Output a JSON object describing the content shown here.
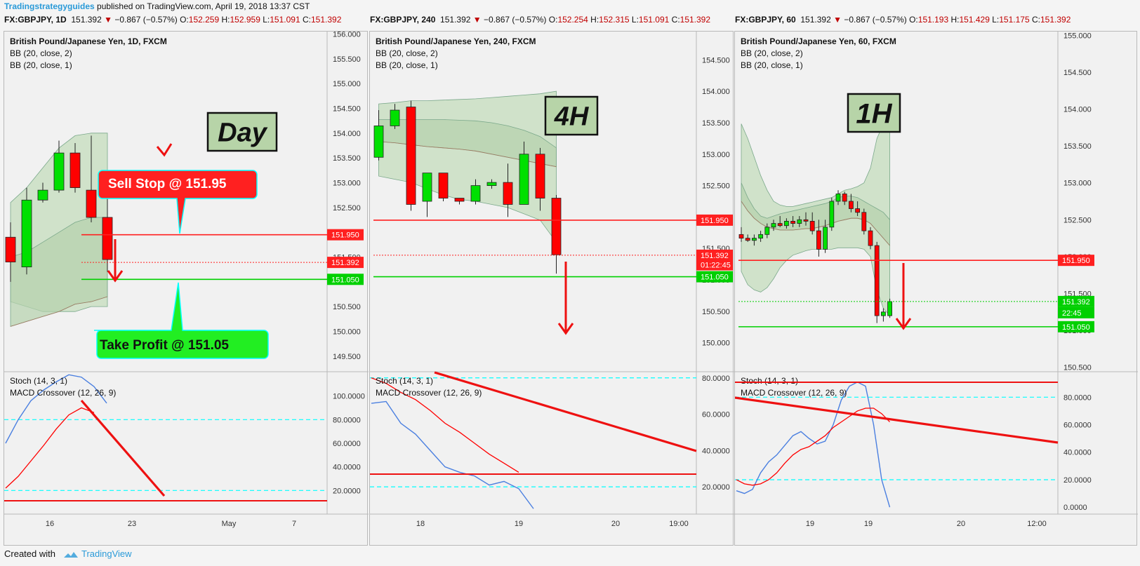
{
  "header": {
    "author": "Tradingstrategyguides",
    "published": "published on TradingView.com, April 19, 2018 13:37 CST"
  },
  "footer": {
    "created_with": "Created with",
    "brand": "TradingView"
  },
  "colors": {
    "bull": "#00e000",
    "bear": "#ff0000",
    "bb_fill": "#c8dfc0",
    "macd": "#ff0000",
    "stoch": "#4a7fe0",
    "level": "#00ffff"
  },
  "chart_data": [
    {
      "type": "candlestick",
      "symbol": "FX:GBPJPY, 1D",
      "quote": {
        "last": "151.392",
        "change": "−0.867 (−0.57%)",
        "o": "152.259",
        "h": "152.959",
        "l": "151.091",
        "c": "151.392"
      },
      "title": "British Pound/Japanese Yen, 1D, FXCM",
      "indicators": [
        "BB (20, close, 2)",
        "BB (20, close, 1)"
      ],
      "badge": "Day",
      "ylim": [
        149.2,
        156.05
      ],
      "yticks": [
        "149.500",
        "150.000",
        "150.500",
        "151.000",
        "151.500",
        "152.000",
        "152.500",
        "153.000",
        "153.500",
        "154.000",
        "154.500",
        "155.000",
        "155.500",
        "156.000"
      ],
      "xticks": [
        "16",
        "23",
        "May",
        "7"
      ],
      "candles": [
        {
          "o": 151.9,
          "h": 152.2,
          "l": 151.0,
          "c": 151.4
        },
        {
          "o": 151.3,
          "h": 152.9,
          "l": 151.15,
          "c": 152.65
        },
        {
          "o": 152.65,
          "h": 153.0,
          "l": 152.6,
          "c": 152.85
        },
        {
          "o": 152.85,
          "h": 153.85,
          "l": 152.8,
          "c": 153.6
        },
        {
          "o": 153.6,
          "h": 153.8,
          "l": 152.8,
          "c": 152.9
        },
        {
          "o": 152.85,
          "h": 153.95,
          "l": 152.2,
          "c": 152.3
        },
        {
          "o": 152.3,
          "h": 153.2,
          "l": 151.2,
          "c": 151.45
        }
      ],
      "bb_outer": {
        "upper": [
          152.6,
          152.9,
          153.3,
          153.7,
          153.95,
          154.0,
          154.0
        ],
        "lower": [
          150.6,
          150.5,
          150.4,
          150.4,
          150.4,
          150.5,
          150.5
        ]
      },
      "bb_inner": {
        "upper": [
          151.5,
          151.6,
          151.8,
          152.0,
          152.2,
          152.3,
          152.3
        ],
        "mid": [
          150.1,
          150.2,
          150.3,
          150.4,
          150.55,
          150.6,
          150.7
        ]
      },
      "levels": [
        {
          "label": "151.950",
          "price": 151.95,
          "color": "#ff2020"
        },
        {
          "label": "151.392",
          "price": 151.392,
          "color": "#ff2020",
          "dotted": true
        },
        {
          "label": "151.050",
          "price": 151.05,
          "color": "#00d000"
        }
      ],
      "callouts": {
        "sell": "Sell Stop @ 151.95",
        "take": "Take Profit @ 151.05"
      },
      "lower": {
        "legend": [
          "Stoch (14, 3, 1)",
          "MACD Crossover (12, 26, 9)"
        ],
        "ylim": [
          0,
          120
        ],
        "yticks": [
          "20.0000",
          "40.0000",
          "60.0000",
          "80.0000",
          "100.0000"
        ],
        "levels": [
          20,
          80
        ],
        "stoch": [
          60,
          80,
          96,
          105,
          112,
          118,
          116,
          108,
          94
        ],
        "macd": [
          22,
          32,
          45,
          58,
          72,
          84,
          90,
          86
        ]
      }
    },
    {
      "type": "candlestick",
      "symbol": "FX:GBPJPY, 240",
      "quote": {
        "last": "151.392",
        "change": "−0.867 (−0.57%)",
        "o": "152.254",
        "h": "152.315",
        "l": "151.091",
        "c": "151.392"
      },
      "title": "British Pound/Japanese Yen, 240, FXCM",
      "indicators": [
        "BB (20, close, 2)",
        "BB (20, close, 1)"
      ],
      "badge": "4H",
      "ylim": [
        149.55,
        154.95
      ],
      "yticks": [
        "150.000",
        "150.500",
        "151.000",
        "151.500",
        "152.000",
        "152.500",
        "153.000",
        "153.500",
        "154.000",
        "154.500"
      ],
      "xticks": [
        "18",
        "19",
        "20",
        "19:00"
      ],
      "candles": [
        {
          "o": 152.95,
          "h": 153.7,
          "l": 152.9,
          "c": 153.45
        },
        {
          "o": 153.45,
          "h": 153.8,
          "l": 153.4,
          "c": 153.7
        },
        {
          "o": 153.75,
          "h": 153.85,
          "l": 152.1,
          "c": 152.2
        },
        {
          "o": 152.25,
          "h": 152.7,
          "l": 152.0,
          "c": 152.7
        },
        {
          "o": 152.7,
          "h": 152.7,
          "l": 152.25,
          "c": 152.3
        },
        {
          "o": 152.3,
          "h": 152.3,
          "l": 152.2,
          "c": 152.25
        },
        {
          "o": 152.25,
          "h": 152.6,
          "l": 152.2,
          "c": 152.5
        },
        {
          "o": 152.5,
          "h": 152.6,
          "l": 152.45,
          "c": 152.55
        },
        {
          "o": 152.55,
          "h": 152.85,
          "l": 152.0,
          "c": 152.2
        },
        {
          "o": 152.2,
          "h": 153.2,
          "l": 152.2,
          "c": 153.0
        },
        {
          "o": 153.0,
          "h": 153.1,
          "l": 152.1,
          "c": 152.3
        },
        {
          "o": 152.3,
          "h": 152.35,
          "l": 151.1,
          "c": 151.4
        }
      ],
      "bb_outer": {
        "upper": [
          153.8,
          153.82,
          153.85,
          153.85,
          153.86,
          153.87,
          153.88,
          153.9,
          153.92,
          153.94,
          153.96,
          154.0
        ],
        "lower": [
          152.65,
          152.6,
          152.55,
          152.45,
          152.35,
          152.28,
          152.25,
          152.2,
          152.15,
          152.05,
          151.95,
          151.6
        ]
      },
      "bb_inner": {
        "upper": [
          153.55,
          153.55,
          153.55,
          153.55,
          153.55,
          153.54,
          153.53,
          153.5,
          153.45,
          153.38,
          153.28,
          153.1
        ],
        "mid": [
          153.2,
          153.18,
          153.15,
          153.12,
          153.1,
          153.08,
          153.05,
          153.0,
          152.95,
          152.9,
          152.85,
          152.8
        ]
      },
      "levels": [
        {
          "label": "151.950",
          "price": 151.95,
          "color": "#ff2020"
        },
        {
          "label": "151.392",
          "price": 151.392,
          "color": "#ff2020",
          "dotted": true
        },
        {
          "label": "01:22:45",
          "price": 151.24,
          "color": "#ff2020",
          "nolines": true
        },
        {
          "label": "151.050",
          "price": 151.05,
          "color": "#00d000"
        }
      ],
      "lower": {
        "legend": [
          "Stoch (14, 3, 1)",
          "MACD Crossover (12, 26, 9)"
        ],
        "ylim": [
          5,
          83
        ],
        "yticks": [
          "20.0000",
          "40.0000",
          "60.0000",
          "80.0000"
        ],
        "levels": [
          20,
          80
        ],
        "stoch": [
          66,
          67,
          55,
          49,
          40,
          31,
          28,
          26,
          21,
          23,
          19,
          8
        ],
        "macd": [
          80,
          77,
          72,
          68,
          62,
          55,
          50,
          44,
          38,
          33,
          28
        ]
      }
    },
    {
      "type": "candlestick",
      "symbol": "FX:GBPJPY, 60",
      "quote": {
        "last": "151.392",
        "change": "−0.867 (−0.57%)",
        "o": "151.193",
        "h": "151.429",
        "l": "151.175",
        "c": "151.392"
      },
      "title": "British Pound/Japanese Yen, 60, FXCM",
      "indicators": [
        "BB (20, close, 2)",
        "BB (20, close, 1)"
      ],
      "badge": "1H",
      "ylim": [
        150.45,
        155.05
      ],
      "yticks": [
        "150.500",
        "151.000",
        "151.500",
        "152.000",
        "152.500",
        "153.000",
        "153.500",
        "154.000",
        "154.500",
        "155.000"
      ],
      "xticks": [
        "19",
        "19",
        "20",
        "12:00"
      ],
      "candles": [
        {
          "o": 152.3,
          "h": 152.4,
          "l": 152.2,
          "c": 152.25
        },
        {
          "o": 152.25,
          "h": 152.3,
          "l": 152.2,
          "c": 152.22
        },
        {
          "o": 152.22,
          "h": 152.3,
          "l": 152.15,
          "c": 152.25
        },
        {
          "o": 152.25,
          "h": 152.35,
          "l": 152.2,
          "c": 152.3
        },
        {
          "o": 152.3,
          "h": 152.45,
          "l": 152.25,
          "c": 152.4
        },
        {
          "o": 152.4,
          "h": 152.5,
          "l": 152.35,
          "c": 152.45
        },
        {
          "o": 152.45,
          "h": 152.55,
          "l": 152.4,
          "c": 152.42
        },
        {
          "o": 152.42,
          "h": 152.52,
          "l": 152.38,
          "c": 152.48
        },
        {
          "o": 152.48,
          "h": 152.55,
          "l": 152.4,
          "c": 152.45
        },
        {
          "o": 152.45,
          "h": 152.55,
          "l": 152.4,
          "c": 152.5
        },
        {
          "o": 152.5,
          "h": 152.6,
          "l": 152.42,
          "c": 152.48
        },
        {
          "o": 152.48,
          "h": 152.6,
          "l": 152.3,
          "c": 152.35
        },
        {
          "o": 152.35,
          "h": 152.5,
          "l": 152.0,
          "c": 152.1
        },
        {
          "o": 152.1,
          "h": 152.5,
          "l": 152.05,
          "c": 152.4
        },
        {
          "o": 152.4,
          "h": 152.8,
          "l": 152.35,
          "c": 152.75
        },
        {
          "o": 152.75,
          "h": 152.9,
          "l": 152.7,
          "c": 152.85
        },
        {
          "o": 152.85,
          "h": 152.88,
          "l": 152.7,
          "c": 152.75
        },
        {
          "o": 152.75,
          "h": 152.85,
          "l": 152.6,
          "c": 152.65
        },
        {
          "o": 152.65,
          "h": 152.75,
          "l": 152.55,
          "c": 152.6
        },
        {
          "o": 152.6,
          "h": 152.65,
          "l": 152.3,
          "c": 152.35
        },
        {
          "o": 152.35,
          "h": 152.4,
          "l": 152.1,
          "c": 152.15
        },
        {
          "o": 152.15,
          "h": 152.2,
          "l": 151.1,
          "c": 151.2
        },
        {
          "o": 151.2,
          "h": 151.3,
          "l": 151.12,
          "c": 151.25
        },
        {
          "o": 151.2,
          "h": 151.43,
          "l": 151.17,
          "c": 151.39
        }
      ],
      "bb_outer": {
        "upper": [
          153.8,
          153.6,
          153.35,
          153.1,
          152.9,
          152.75,
          152.7,
          152.68,
          152.68,
          152.7,
          152.72,
          152.74,
          152.76,
          152.78,
          152.8,
          152.85,
          152.9,
          152.92,
          152.95,
          153.0,
          153.2,
          153.6,
          153.8,
          153.85
        ],
        "lower": [
          151.8,
          151.62,
          151.55,
          151.52,
          151.58,
          151.7,
          151.85,
          151.95,
          152.02,
          152.05,
          152.08,
          152.1,
          152.1,
          152.1,
          152.1,
          152.12,
          152.12,
          152.12,
          152.12,
          152.1,
          152.0,
          151.55,
          151.3,
          151.2
        ]
      },
      "bb_inner": {
        "upper": [
          153.0,
          152.8,
          152.65,
          152.55,
          152.52,
          152.55,
          152.58,
          152.6,
          152.62,
          152.64,
          152.66,
          152.68,
          152.7,
          152.72,
          152.75,
          152.8,
          152.82,
          152.82,
          152.8,
          152.75,
          152.7,
          152.65,
          152.6,
          152.5
        ],
        "mid": [
          152.75,
          152.62,
          152.52,
          152.45,
          152.4,
          152.38,
          152.36,
          152.36,
          152.36,
          152.37,
          152.38,
          152.38,
          152.4,
          152.42,
          152.45,
          152.48,
          152.5,
          152.52,
          152.52,
          152.5,
          152.45,
          152.35,
          152.25,
          152.15
        ]
      },
      "levels": [
        {
          "label": "151.950",
          "price": 151.95,
          "color": "#ff2020"
        },
        {
          "label": "151.392",
          "price": 151.392,
          "color": "#00d000",
          "dotted": true
        },
        {
          "label": "22:45",
          "price": 151.24,
          "color": "#00d000",
          "nolines": true
        },
        {
          "label": "151.050",
          "price": 151.05,
          "color": "#00d000"
        }
      ],
      "lower": {
        "legend": [
          "Stoch (14, 3, 1)",
          "MACD Crossover (12, 26, 9)"
        ],
        "ylim": [
          -5,
          98
        ],
        "yticks": [
          "0.0000",
          "20.0000",
          "40.0000",
          "60.0000",
          "80.0000"
        ],
        "levels": [
          20,
          80
        ],
        "stoch": [
          12,
          10,
          13,
          25,
          33,
          38,
          45,
          52,
          55,
          50,
          46,
          48,
          60,
          78,
          88,
          91,
          88,
          60,
          20,
          0
        ],
        "macd": [
          20,
          17,
          16,
          17,
          20,
          25,
          32,
          38,
          42,
          44,
          48,
          52,
          58,
          62,
          66,
          70,
          72,
          72,
          68,
          62
        ]
      }
    }
  ]
}
